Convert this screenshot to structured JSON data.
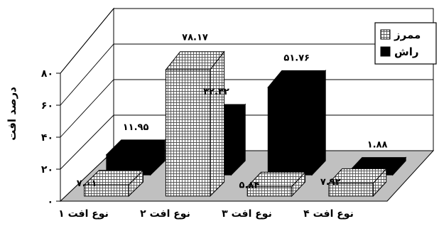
{
  "chart_data": {
    "type": "bar",
    "title": "",
    "xlabel": "",
    "ylabel": "درصد افت",
    "ylim": [
      0,
      80
    ],
    "yticks": [
      "۰",
      "۲۰",
      "۴۰",
      "۶۰",
      "۸۰"
    ],
    "grid": true,
    "legend_position": "top-right",
    "categories": [
      "نوع افت ۱",
      "نوع افت ۲",
      "نوع افت ۳",
      "نوع افت ۴"
    ],
    "series": [
      {
        "name": "ممرز",
        "pattern": "grid",
        "values": [
          7.01,
          78.17,
          5.84,
          7.92
        ],
        "labels": [
          "۷.۰۱",
          "۷۸.۱۷",
          "۵.۸۴",
          "۷.۹۲"
        ]
      },
      {
        "name": "راش",
        "color": "#000000",
        "values": [
          11.95,
          32.32,
          51.76,
          1.88
        ],
        "labels": [
          "۱۱.۹۵",
          "۳۲.۳۲",
          "۵۱.۷۶",
          "۱.۸۸"
        ]
      }
    ]
  }
}
